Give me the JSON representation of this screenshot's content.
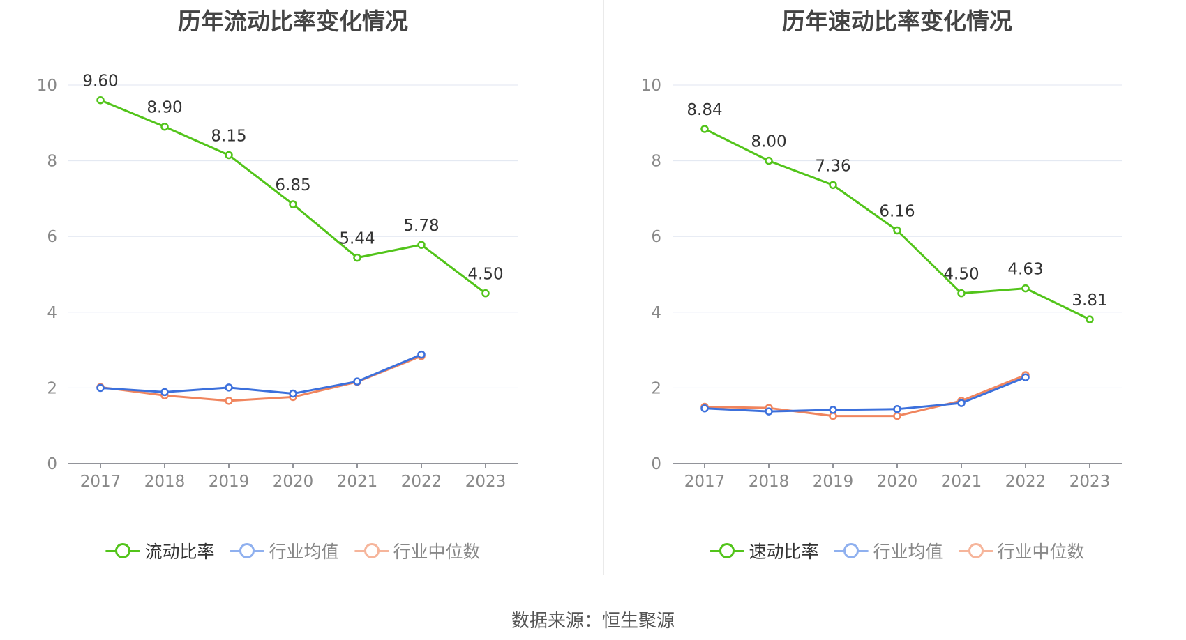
{
  "colors": {
    "main": "#52c41a",
    "mean": "#3c70dc",
    "median": "#f0855e",
    "mean_legend": "#8fb0ef",
    "median_legend": "#f6b59b"
  },
  "chart_data": [
    {
      "type": "line",
      "title": "历年流动比率变化情况",
      "categories": [
        "2017",
        "2018",
        "2019",
        "2020",
        "2021",
        "2022",
        "2023"
      ],
      "ylim": [
        0,
        10
      ],
      "yticks": [
        0,
        2,
        4,
        6,
        8,
        10
      ],
      "grid": true,
      "legend_position": "bottom",
      "series": [
        {
          "name": "流动比率",
          "values": [
            9.6,
            8.9,
            8.15,
            6.85,
            5.44,
            5.78,
            4.5
          ],
          "labels": [
            "9.60",
            "8.90",
            "8.15",
            "6.85",
            "5.44",
            "5.78",
            "4.50"
          ]
        },
        {
          "name": "行业均值",
          "values": [
            2.0,
            1.89,
            2.01,
            1.85,
            2.17,
            2.88,
            null
          ]
        },
        {
          "name": "行业中位数",
          "values": [
            2.02,
            1.8,
            1.66,
            1.76,
            2.16,
            2.84,
            null
          ]
        }
      ]
    },
    {
      "type": "line",
      "title": "历年速动比率变化情况",
      "categories": [
        "2017",
        "2018",
        "2019",
        "2020",
        "2021",
        "2022",
        "2023"
      ],
      "ylim": [
        0,
        10
      ],
      "yticks": [
        0,
        2,
        4,
        6,
        8,
        10
      ],
      "grid": true,
      "legend_position": "bottom",
      "series": [
        {
          "name": "速动比率",
          "values": [
            8.84,
            8.0,
            7.36,
            6.16,
            4.5,
            4.63,
            3.81
          ],
          "labels": [
            "8.84",
            "8.00",
            "7.36",
            "6.16",
            "4.50",
            "4.63",
            "3.81"
          ]
        },
        {
          "name": "行业均值",
          "values": [
            1.46,
            1.38,
            1.42,
            1.44,
            1.6,
            2.28,
            null
          ]
        },
        {
          "name": "行业中位数",
          "values": [
            1.5,
            1.47,
            1.26,
            1.26,
            1.66,
            2.34,
            null
          ]
        }
      ]
    }
  ],
  "source_text": "数据来源：恒生聚源"
}
